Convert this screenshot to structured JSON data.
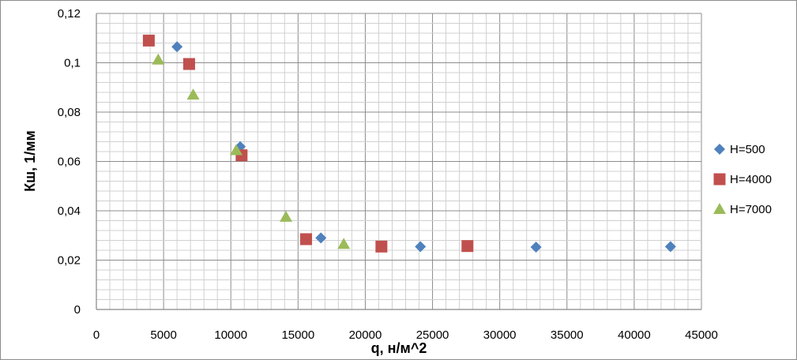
{
  "chart_data": {
    "type": "scatter",
    "title": "",
    "xlabel": "q, н/м^2",
    "ylabel": "Кш, 1/мм",
    "xlim": [
      0,
      45000
    ],
    "ylim": [
      0,
      0.12
    ],
    "x_ticks": [
      "0",
      "5000",
      "10000",
      "15000",
      "20000",
      "25000",
      "30000",
      "35000",
      "40000",
      "45000"
    ],
    "y_ticks": [
      "0",
      "0,02",
      "0,04",
      "0,06",
      "0,08",
      "0,1",
      "0,12"
    ],
    "grid": true,
    "legend_position": "right",
    "series": [
      {
        "name": "H=500",
        "marker": "diamond",
        "color": "#4f81bd",
        "points": [
          [
            6000,
            0.1065
          ],
          [
            10700,
            0.066
          ],
          [
            16700,
            0.029
          ],
          [
            24100,
            0.0255
          ],
          [
            32700,
            0.0253
          ],
          [
            42700,
            0.0255
          ]
        ]
      },
      {
        "name": "H=4000",
        "marker": "square",
        "color": "#c0504d",
        "points": [
          [
            3900,
            0.109
          ],
          [
            6900,
            0.0995
          ],
          [
            10800,
            0.0625
          ],
          [
            15600,
            0.0285
          ],
          [
            21200,
            0.0255
          ],
          [
            27600,
            0.0257
          ]
        ]
      },
      {
        "name": "H=7000",
        "marker": "triangle",
        "color": "#9bbb59",
        "points": [
          [
            4600,
            0.1012
          ],
          [
            7200,
            0.087
          ],
          [
            10400,
            0.0645
          ],
          [
            14100,
            0.0375
          ],
          [
            18400,
            0.0265
          ]
        ]
      }
    ]
  }
}
